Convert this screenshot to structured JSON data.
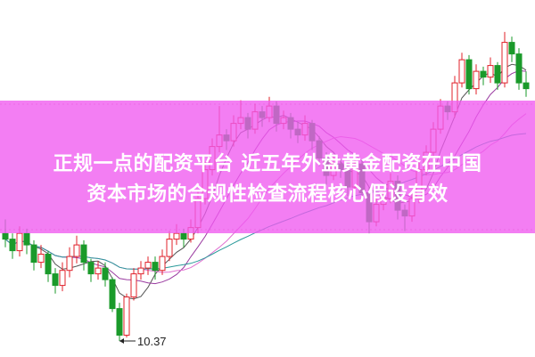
{
  "chart_data": {
    "type": "candlestick",
    "title": "",
    "annotation_low": "10.37",
    "colors": {
      "up": "#e0202a",
      "down": "#1a9a2a",
      "ma": [
        "#555555",
        "#9a3aa0",
        "#e070d0",
        "#2a9a9a"
      ],
      "banner": "#f05af0"
    },
    "grid_dotted_lines": true,
    "candles": [
      [
        11.3,
        11.42,
        11.18,
        11.25
      ],
      [
        11.25,
        11.3,
        11.08,
        11.15
      ],
      [
        11.15,
        11.36,
        11.1,
        11.3
      ],
      [
        11.3,
        11.34,
        11.12,
        11.2
      ],
      [
        11.2,
        11.24,
        10.98,
        11.05
      ],
      [
        11.05,
        11.2,
        11.0,
        11.12
      ],
      [
        11.12,
        11.15,
        10.88,
        10.95
      ],
      [
        10.95,
        11.0,
        10.78,
        10.85
      ],
      [
        10.85,
        11.05,
        10.8,
        10.98
      ],
      [
        10.98,
        11.18,
        10.92,
        11.1
      ],
      [
        11.1,
        11.28,
        11.04,
        11.2
      ],
      [
        11.2,
        11.24,
        10.98,
        11.05
      ],
      [
        11.05,
        11.08,
        10.88,
        10.95
      ],
      [
        10.95,
        11.06,
        10.9,
        11.0
      ],
      [
        11.0,
        11.05,
        10.84,
        10.9
      ],
      [
        10.9,
        10.92,
        10.62,
        10.65
      ],
      [
        10.65,
        10.7,
        10.37,
        10.42
      ],
      [
        10.42,
        10.78,
        10.4,
        10.75
      ],
      [
        10.75,
        11.0,
        10.72,
        10.95
      ],
      [
        10.95,
        11.06,
        10.9,
        11.0
      ],
      [
        11.0,
        11.1,
        10.94,
        11.05
      ],
      [
        11.05,
        11.1,
        10.9,
        10.98
      ],
      [
        10.98,
        11.16,
        10.94,
        11.1
      ],
      [
        11.1,
        11.32,
        11.06,
        11.25
      ],
      [
        11.25,
        11.38,
        11.2,
        11.3
      ],
      [
        11.3,
        11.34,
        11.18,
        11.25
      ],
      [
        11.25,
        11.42,
        11.22,
        11.35
      ],
      [
        11.35,
        11.66,
        11.3,
        11.6
      ],
      [
        11.6,
        11.92,
        11.55,
        11.85
      ],
      [
        11.85,
        12.12,
        11.8,
        12.05
      ],
      [
        12.05,
        12.4,
        12.0,
        12.15
      ],
      [
        12.15,
        12.2,
        12.02,
        12.1
      ],
      [
        12.1,
        12.32,
        12.05,
        12.25
      ],
      [
        12.25,
        12.45,
        12.2,
        12.3
      ],
      [
        12.3,
        12.34,
        12.12,
        12.2
      ],
      [
        12.2,
        12.42,
        12.16,
        12.35
      ],
      [
        12.35,
        12.4,
        12.22,
        12.3
      ],
      [
        12.3,
        12.48,
        12.26,
        12.4
      ],
      [
        12.4,
        12.44,
        12.18,
        12.25
      ],
      [
        12.25,
        12.36,
        12.2,
        12.3
      ],
      [
        12.3,
        12.34,
        12.12,
        12.2
      ],
      [
        12.2,
        12.26,
        12.08,
        12.15
      ],
      [
        12.15,
        12.32,
        12.1,
        12.25
      ],
      [
        12.25,
        12.28,
        12.02,
        12.1
      ],
      [
        12.1,
        12.14,
        11.88,
        11.95
      ],
      [
        11.95,
        12.0,
        11.72,
        11.8
      ],
      [
        11.8,
        11.98,
        11.76,
        11.9
      ],
      [
        11.9,
        11.94,
        11.78,
        11.85
      ],
      [
        11.85,
        11.9,
        11.62,
        11.7
      ],
      [
        11.7,
        11.96,
        11.66,
        11.9
      ],
      [
        11.9,
        11.94,
        11.58,
        11.65
      ],
      [
        11.65,
        11.7,
        11.3,
        11.4
      ],
      [
        11.4,
        11.62,
        11.36,
        11.55
      ],
      [
        11.55,
        11.68,
        11.5,
        11.6
      ],
      [
        11.6,
        11.82,
        11.56,
        11.75
      ],
      [
        11.75,
        11.8,
        11.42,
        11.5
      ],
      [
        11.5,
        11.55,
        11.32,
        11.45
      ],
      [
        11.45,
        11.66,
        11.4,
        11.6
      ],
      [
        11.6,
        11.92,
        11.56,
        11.85
      ],
      [
        11.85,
        12.06,
        11.8,
        12.0
      ],
      [
        12.0,
        12.26,
        11.96,
        12.2
      ],
      [
        12.2,
        12.46,
        12.16,
        12.4
      ],
      [
        12.4,
        12.44,
        12.28,
        12.35
      ],
      [
        12.35,
        12.66,
        12.3,
        12.6
      ],
      [
        12.6,
        12.86,
        12.56,
        12.8
      ],
      [
        12.8,
        12.84,
        12.5,
        12.55
      ],
      [
        12.55,
        12.76,
        12.5,
        12.7
      ],
      [
        12.7,
        12.74,
        12.58,
        12.65
      ],
      [
        12.65,
        12.82,
        12.6,
        12.75
      ],
      [
        12.75,
        12.78,
        12.54,
        12.6
      ],
      [
        12.6,
        13.04,
        12.56,
        12.95
      ],
      [
        12.95,
        13.0,
        12.78,
        12.85
      ],
      [
        12.85,
        12.9,
        12.54,
        12.6
      ],
      [
        12.6,
        12.7,
        12.48,
        12.55
      ]
    ]
  },
  "banner": {
    "line1": "正规一点的配资平台 近五年外盘黄金配资在中国",
    "line2": "资本市场的合规性检查流程核心假设有效"
  }
}
